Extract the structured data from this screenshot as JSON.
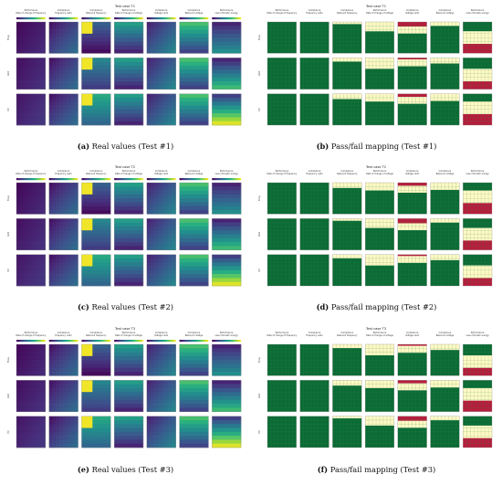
{
  "colors": {
    "viridis": [
      "#440154",
      "#472d7b",
      "#3b528b",
      "#2c728e",
      "#21918c",
      "#28ae80",
      "#5ec962",
      "#addc30",
      "#fde725"
    ],
    "pass": "#0c6b35",
    "pass_grid": "#2e8b4f",
    "warn": "#fff9c4",
    "fail": "#b71c3c"
  },
  "panels": [
    {
      "id": "a",
      "kind": "real",
      "case_title": "Test case T1",
      "caption": {
        "label": "(a)",
        "text": "Real values (Test #1)"
      }
    },
    {
      "id": "b",
      "kind": "passfail",
      "case_title": "Test case T1",
      "caption": {
        "label": "(b)",
        "text": "Pass/fail mapping (Test #1)"
      }
    },
    {
      "id": "c",
      "kind": "real",
      "case_title": "Test case T2",
      "caption": {
        "label": "(c)",
        "text": "Real values (Test #2)"
      }
    },
    {
      "id": "d",
      "kind": "passfail",
      "case_title": "Test case T2",
      "caption": {
        "label": "(d)",
        "text": "Pass/fail mapping (Test #2)"
      }
    },
    {
      "id": "e",
      "kind": "real",
      "case_title": "Test case T3",
      "caption": {
        "label": "(e)",
        "text": "Real values (Test #3)"
      }
    },
    {
      "id": "f",
      "kind": "passfail",
      "case_title": "Test case T3",
      "caption": {
        "label": "(f)",
        "text": "Pass/fail mapping (Test #3)"
      }
    }
  ],
  "column_titles": [
    "Performance\nRate of change of frequency",
    "Compliance\nFrequency nadir",
    "Compliance\nRebound frequency",
    "Performance\nRate of change of voltage",
    "Compliance\nVoltage nadir",
    "Compliance\nRebound voltage",
    "Performance\nLoss of kinetic energy"
  ],
  "row_labels": [
    "Freq",
    "Volt",
    "PV"
  ]
}
